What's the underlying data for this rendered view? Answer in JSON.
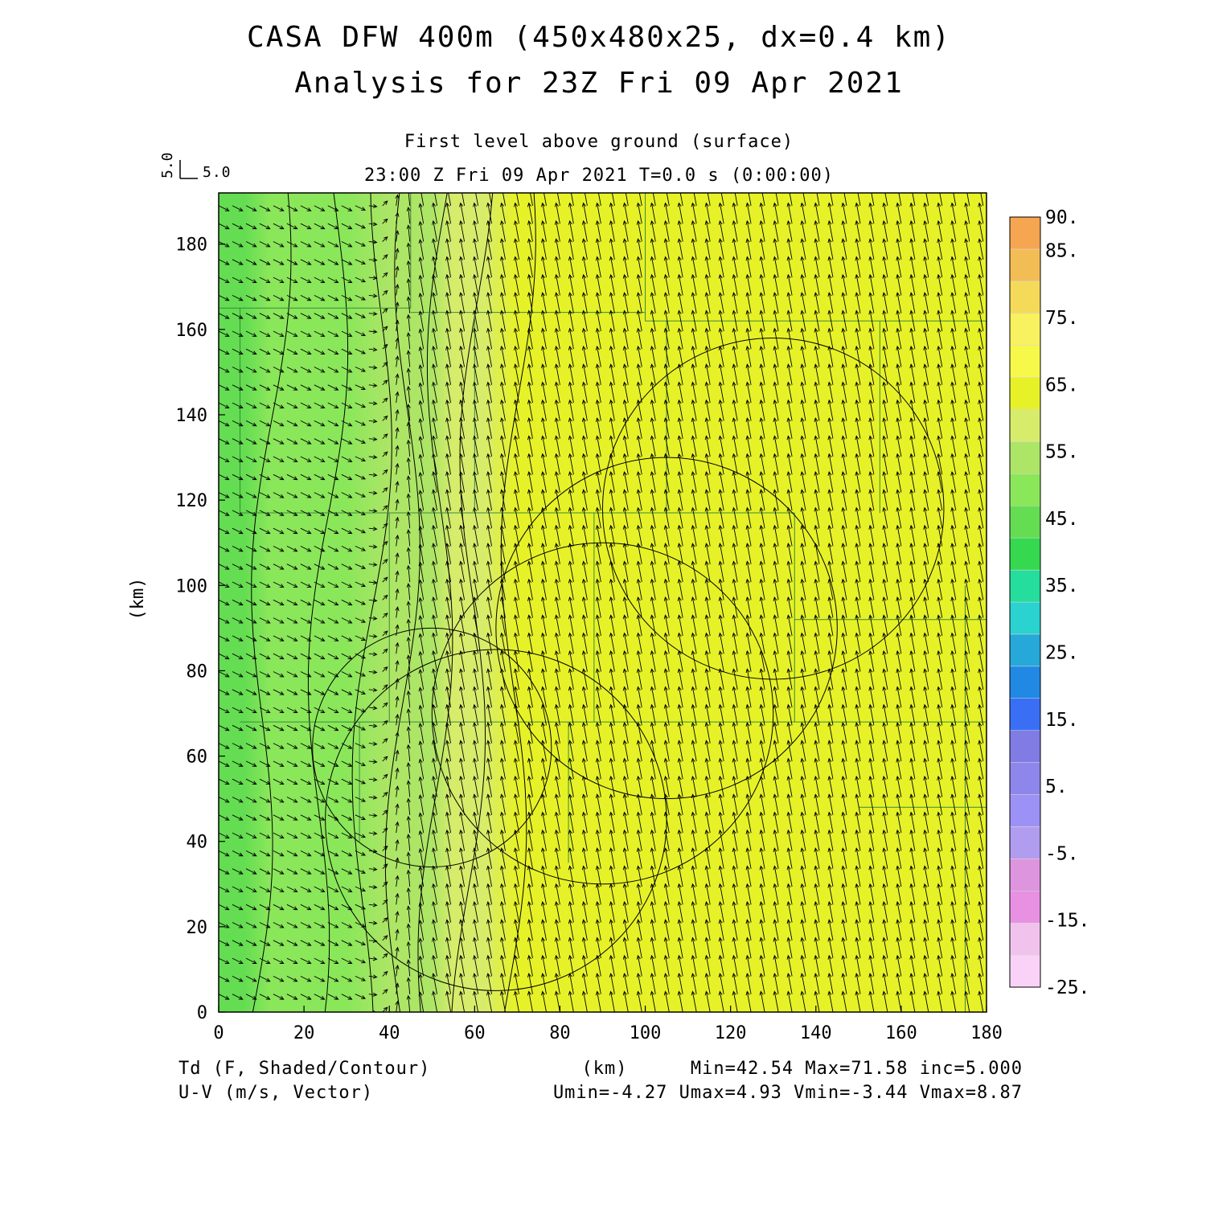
{
  "header": {
    "title_line1": "CASA DFW 400m (450x480x25, dx=0.4 km)",
    "title_line2": "Analysis for 23Z Fri 09 Apr 2021",
    "subtitle": "First level above ground (surface)",
    "time_line": "23:00 Z Fri 09 Apr 2021    T=0.0 s (0:00:00)"
  },
  "vector_key": {
    "u_label": "5.0",
    "v_label": "5.0"
  },
  "footer": {
    "td_label": "Td (F, Shaded/Contour)",
    "uv_label": "U-V (m/s, Vector)",
    "x_unit": "(km)",
    "stats_line1": "Min=42.54 Max=71.58 inc=5.000",
    "stats_line2": "Umin=-4.27 Umax=4.93 Vmin=-3.44 Vmax=8.87"
  },
  "chart_data": {
    "type": "heatmap",
    "field": "Td",
    "units_field": "F",
    "units_vector": "m/s",
    "xlabel": "",
    "ylabel": "(km)",
    "xlim": [
      0,
      180
    ],
    "ylim": [
      0,
      192
    ],
    "x_ticks": [
      "0",
      "20",
      "40",
      "60",
      "80",
      "100",
      "120",
      "140",
      "160",
      "180"
    ],
    "y_ticks": [
      "0",
      "20",
      "40",
      "60",
      "80",
      "100",
      "120",
      "140",
      "160",
      "180"
    ],
    "contour_interval": 5.0,
    "min": 42.54,
    "max": 71.58,
    "umin": -4.27,
    "umax": 4.93,
    "vmin": -3.44,
    "vmax": 8.87,
    "colorbar": {
      "levels": [
        -25,
        -20,
        -15,
        -10,
        -5,
        0,
        5,
        10,
        15,
        20,
        25,
        30,
        35,
        40,
        45,
        50,
        55,
        60,
        65,
        70,
        75,
        80,
        85,
        90
      ],
      "labels": [
        "90.",
        "85.",
        "75.",
        "65.",
        "55.",
        "45.",
        "35.",
        "25.",
        "15.",
        "5.",
        "-5.",
        "-15.",
        "-25."
      ],
      "colors": [
        "#fad2f8",
        "#f1c3ec",
        "#e891e3",
        "#dd95dd",
        "#b09df0",
        "#9c91f5",
        "#8e86eb",
        "#807ce4",
        "#3a6ff5",
        "#2188e3",
        "#26a8d8",
        "#2ad2d0",
        "#25dd9c",
        "#35d84f",
        "#64dd52",
        "#8ae75a",
        "#ade566",
        "#d8ec6c",
        "#e6f227",
        "#f6f84a",
        "#f8f160",
        "#f4da58",
        "#f3bd55",
        "#f6a550"
      ]
    },
    "td_profile": {
      "x": [
        0,
        3,
        6,
        12,
        20,
        30,
        40,
        50,
        55,
        62,
        70,
        90,
        110,
        130,
        150,
        170,
        180
      ],
      "values": [
        45,
        46,
        48,
        50,
        52,
        54,
        56,
        59,
        61,
        63,
        66,
        67,
        67.5,
        68,
        68.5,
        69,
        69.5
      ]
    },
    "wind": {
      "west": {
        "u": 4.0,
        "v": -2.0
      },
      "east": {
        "u": -1.5,
        "v": 8.0
      },
      "transition_x": [
        30,
        50
      ]
    }
  }
}
